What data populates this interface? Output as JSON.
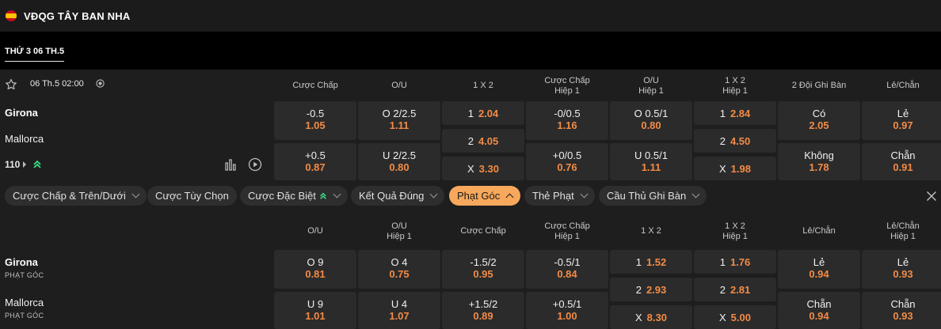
{
  "league": {
    "title": "VĐQG TÂY BAN NHA",
    "flag": "spain-flag-icon"
  },
  "date_tab": "THỨ 3 06 TH.5",
  "match": {
    "kickoff": "06 Th.5 02:00",
    "home": "Girona",
    "away": "Mallorca",
    "more_count": "110",
    "headers": [
      "Cược Chấp",
      "O/U",
      "1 X 2",
      "Cược Chấp\nHiệp 1",
      "O/U\nHiệp 1",
      "1 X 2\nHiệp 1",
      "2 Đội Ghi Bàn",
      "Lẻ/Chẵn"
    ],
    "markets": [
      {
        "top": {
          "label": "-0.5",
          "odd": "1.05"
        },
        "bottom": {
          "label": "+0.5",
          "odd": "0.87"
        }
      },
      {
        "top": {
          "label": "O 2/2.5",
          "odd": "1.11"
        },
        "bottom": {
          "label": "U 2/2.5",
          "odd": "0.80"
        }
      },
      {
        "r1": {
          "label": "1",
          "odd": "2.04"
        },
        "r2": {
          "label": "2",
          "odd": "4.05"
        },
        "r3": {
          "label": "X",
          "odd": "3.30"
        }
      },
      {
        "top": {
          "label": "-0/0.5",
          "odd": "1.16"
        },
        "bottom": {
          "label": "+0/0.5",
          "odd": "0.76"
        }
      },
      {
        "top": {
          "label": "O 0.5/1",
          "odd": "0.80"
        },
        "bottom": {
          "label": "U 0.5/1",
          "odd": "1.11"
        }
      },
      {
        "r1": {
          "label": "1",
          "odd": "2.84"
        },
        "r2": {
          "label": "2",
          "odd": "4.50"
        },
        "r3": {
          "label": "X",
          "odd": "1.98"
        }
      },
      {
        "top": {
          "label": "Có",
          "odd": "2.05"
        },
        "bottom": {
          "label": "Không",
          "odd": "1.78"
        }
      },
      {
        "top": {
          "label": "Lẻ",
          "odd": "0.97"
        },
        "bottom": {
          "label": "Chẵn",
          "odd": "0.91"
        }
      }
    ]
  },
  "filters": [
    {
      "label": "Cược Chấp & Trên/Dưới",
      "active": false
    },
    {
      "label": "Cược Tùy Chọn",
      "active": false
    },
    {
      "label": "Cược Đặc Biệt",
      "active": false
    },
    {
      "label": "Kết Quả Đúng",
      "active": false
    },
    {
      "label": "Phạt Góc",
      "active": true
    },
    {
      "label": "Thẻ Phạt",
      "active": false
    },
    {
      "label": "Cầu Thủ Ghi Bàn",
      "active": false
    }
  ],
  "corners": {
    "home": "Girona",
    "home_sub": "PHẠT GÓC",
    "away": "Mallorca",
    "away_sub": "PHẠT GÓC",
    "headers": [
      "O/U",
      "O/U\nHiệp 1",
      "Cược Chấp",
      "Cược Chấp\nHiệp 1",
      "1 X 2",
      "1 X 2\nHiệp 1",
      "Lẻ/Chẵn",
      "Lẻ/Chẵn\nHiệp 1"
    ],
    "markets": [
      {
        "top": {
          "label": "O 9",
          "odd": "0.81"
        },
        "bottom": {
          "label": "U 9",
          "odd": "1.01"
        }
      },
      {
        "top": {
          "label": "O 4",
          "odd": "0.75"
        },
        "bottom": {
          "label": "U 4",
          "odd": "1.07"
        }
      },
      {
        "top": {
          "label": "-1.5/2",
          "odd": "0.95"
        },
        "bottom": {
          "label": "+1.5/2",
          "odd": "0.89"
        }
      },
      {
        "top": {
          "label": "-0.5/1",
          "odd": "0.84"
        },
        "bottom": {
          "label": "+0.5/1",
          "odd": "1.00"
        }
      },
      {
        "r1": {
          "label": "1",
          "odd": "1.52"
        },
        "r2": {
          "label": "2",
          "odd": "2.93"
        },
        "r3": {
          "label": "X",
          "odd": "8.30"
        }
      },
      {
        "r1": {
          "label": "1",
          "odd": "1.76"
        },
        "r2": {
          "label": "2",
          "odd": "2.81"
        },
        "r3": {
          "label": "X",
          "odd": "5.00"
        }
      },
      {
        "top": {
          "label": "Lẻ",
          "odd": "0.94"
        },
        "bottom": {
          "label": "Chẵn",
          "odd": "0.94"
        }
      },
      {
        "top": {
          "label": "Lẻ",
          "odd": "0.93"
        },
        "bottom": {
          "label": "Chẵn",
          "odd": "0.93"
        }
      }
    ]
  },
  "colors": {
    "odd": "#f28b46",
    "active_pill": "#f7a85c",
    "cell": "#2b2b2b",
    "boost": "#3ddc84"
  }
}
